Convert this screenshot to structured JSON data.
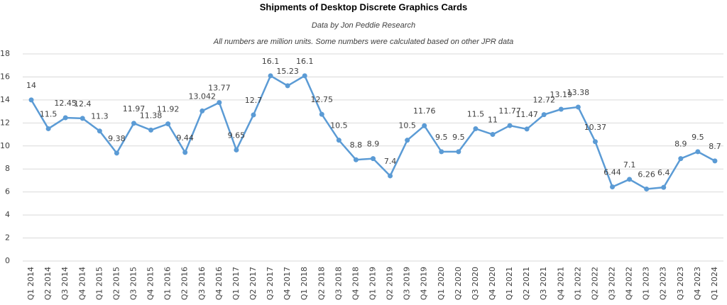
{
  "chart_data": {
    "type": "line",
    "title": "Shipments of Desktop Discrete Graphics Cards",
    "subtitle": "Data by Jon Peddie Research",
    "note": "All numbers are million units. Some numbers were calculated based on other JPR data",
    "categories": [
      "Q1 2014",
      "Q2 2014",
      "Q3 2014",
      "Q4 2014",
      "Q1 2015",
      "Q2 2015",
      "Q3 2015",
      "Q4 2015",
      "Q1 2016",
      "Q2 2016",
      "Q3 2016",
      "Q4 2016",
      "Q1 2017",
      "Q2 2017",
      "Q3 2017",
      "Q4 2017",
      "Q1 2018",
      "Q2 2018",
      "Q3 2018",
      "Q4 2018",
      "Q1 2019",
      "Q2 2019",
      "Q3 2019",
      "Q4 2019",
      "Q1 2020",
      "Q2 2020",
      "Q3 2020",
      "Q4 2020",
      "Q1 2021",
      "Q2 2021",
      "Q3 2021",
      "Q4 2021",
      "Q1 2022",
      "Q2 2022",
      "Q3 2022",
      "Q4 2022",
      "Q1 2023",
      "Q2 2023",
      "Q3 2023",
      "Q4 2023",
      "Q1 2024"
    ],
    "values": [
      14,
      11.5,
      12.45,
      12.4,
      11.3,
      9.38,
      11.97,
      11.38,
      11.92,
      9.44,
      13.042,
      13.77,
      9.65,
      12.7,
      16.1,
      15.23,
      16.1,
      12.75,
      10.5,
      8.8,
      8.9,
      7.4,
      10.5,
      11.76,
      9.5,
      9.5,
      11.5,
      11,
      11.77,
      11.47,
      12.72,
      13.19,
      13.38,
      10.37,
      6.44,
      7.1,
      6.26,
      6.4,
      8.9,
      9.5,
      8.7
    ],
    "color": "#5b9bd5",
    "ylim": [
      0,
      18
    ],
    "yticks": [
      0,
      2,
      4,
      6,
      8,
      10,
      12,
      14,
      16,
      18
    ],
    "grid": true
  }
}
